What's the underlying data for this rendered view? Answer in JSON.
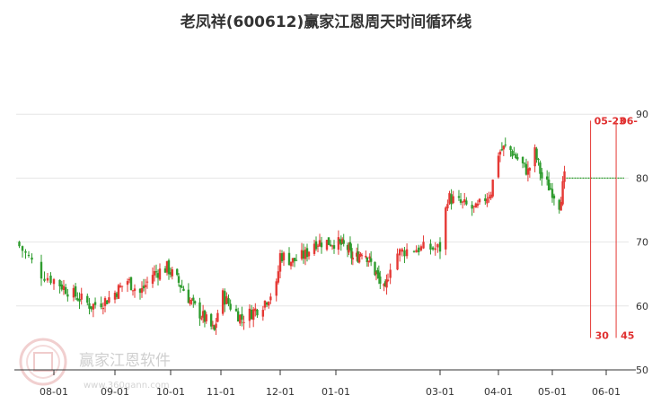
{
  "chart_data": {
    "type": "candlestick",
    "title": "老凤祥(600612)赢家江恩周天时间循环线",
    "y_ticks": [
      "90",
      "80",
      "70",
      "60",
      "50"
    ],
    "x_ticks": [
      "08-01",
      "09-01",
      "10-01",
      "11-01",
      "12-01",
      "01-01",
      "03-01",
      "04-01",
      "05-01",
      "06-01"
    ],
    "ylim": [
      50,
      92
    ],
    "grid": true,
    "colors": {
      "up": "#e53935",
      "down": "#2e9c2e",
      "marker": "#e53935",
      "projection": "#2e9c2e"
    },
    "keypoints": [
      {
        "date": "07-20",
        "close": 70.0
      },
      {
        "date": "07-28",
        "close": 65.0
      },
      {
        "date": "08-10",
        "close": 62.0
      },
      {
        "date": "08-20",
        "close": 60.0
      },
      {
        "date": "08-28",
        "close": 61.0
      },
      {
        "date": "09-08",
        "close": 64.0
      },
      {
        "date": "09-15",
        "close": 62.0
      },
      {
        "date": "09-22",
        "close": 65.0
      },
      {
        "date": "09-30",
        "close": 66.0
      },
      {
        "date": "10-08",
        "close": 63.0
      },
      {
        "date": "10-15",
        "close": 60.0
      },
      {
        "date": "10-22",
        "close": 58.0
      },
      {
        "date": "10-28",
        "close": 56.0
      },
      {
        "date": "11-01",
        "close": 62.0
      },
      {
        "date": "11-06",
        "close": 60.0
      },
      {
        "date": "11-12",
        "close": 58.0
      },
      {
        "date": "11-22",
        "close": 60.0
      },
      {
        "date": "11-30",
        "close": 63.0
      },
      {
        "date": "12-01",
        "close": 68.0
      },
      {
        "date": "12-08",
        "close": 67.0
      },
      {
        "date": "12-15",
        "close": 68.0
      },
      {
        "date": "12-20",
        "close": 70.0
      },
      {
        "date": "01-01",
        "close": 70.0
      },
      {
        "date": "01-10",
        "close": 69.0
      },
      {
        "date": "01-15",
        "close": 67.0
      },
      {
        "date": "01-22",
        "close": 69.0
      },
      {
        "date": "02-01",
        "close": 65.0
      },
      {
        "date": "02-08",
        "close": 62.0
      },
      {
        "date": "02-12",
        "close": 68.0
      },
      {
        "date": "02-20",
        "close": 69.0
      },
      {
        "date": "03-01",
        "close": 69.0
      },
      {
        "date": "03-05",
        "close": 77.0
      },
      {
        "date": "03-12",
        "close": 76.0
      },
      {
        "date": "03-20",
        "close": 75.0
      },
      {
        "date": "03-28",
        "close": 78.0
      },
      {
        "date": "04-01",
        "close": 84.0
      },
      {
        "date": "04-06",
        "close": 85.0
      },
      {
        "date": "04-12",
        "close": 83.0
      },
      {
        "date": "04-18",
        "close": 81.0
      },
      {
        "date": "04-22",
        "close": 84.0
      },
      {
        "date": "04-26",
        "close": 80.0
      },
      {
        "date": "05-01",
        "close": 78.0
      },
      {
        "date": "05-05",
        "close": 76.0
      },
      {
        "date": "05-08",
        "close": 80.0
      }
    ],
    "projection": {
      "from": "05-09",
      "to": "06-10",
      "value": 80.0
    },
    "time_markers": [
      {
        "date": "05-23",
        "top_label": "05-23",
        "bottom_label": "30"
      },
      {
        "date": "06-06",
        "top_label": "06-",
        "bottom_label": "45"
      }
    ]
  },
  "watermark": {
    "brand": "赢家江恩软件",
    "url": "www.360gann.com"
  }
}
